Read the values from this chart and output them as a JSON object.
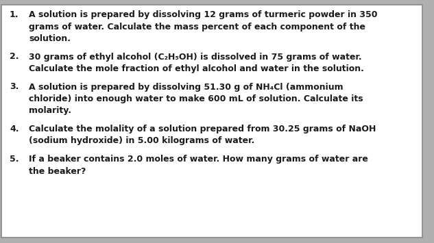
{
  "bg_color": "#ffffff",
  "shadow_color": "#b0b0b0",
  "border_color": "#888888",
  "text_color": "#1a1a1a",
  "font_family": "DejaVu Sans",
  "font_size": 9.0,
  "items": [
    {
      "number": "1.",
      "lines": [
        "A solution is prepared by dissolving 12 grams of turmeric powder in 350",
        "grams of water. Calculate the mass percent of each component of the",
        "solution."
      ]
    },
    {
      "number": "2.",
      "lines": [
        "30 grams of ethyl alcohol (C₂H₅OH) is dissolved in 75 grams of water.",
        "Calculate the mole fraction of ethyl alcohol and water in the solution."
      ]
    },
    {
      "number": "3.",
      "lines": [
        "A solution is prepared by dissolving 51.30 g of NH₄Cl (ammonium",
        "chloride) into enough water to make 600 mL of solution. Calculate its",
        "molarity."
      ]
    },
    {
      "number": "4.",
      "lines": [
        "Calculate the molality of a solution prepared from 30.25 grams of NaOH",
        "(sodium hydroxide) in 5.00 kilograms of water."
      ]
    },
    {
      "number": "5.",
      "lines": [
        "If a beaker contains 2.0 moles of water. How many grams of water are",
        "the beaker?"
      ]
    }
  ]
}
